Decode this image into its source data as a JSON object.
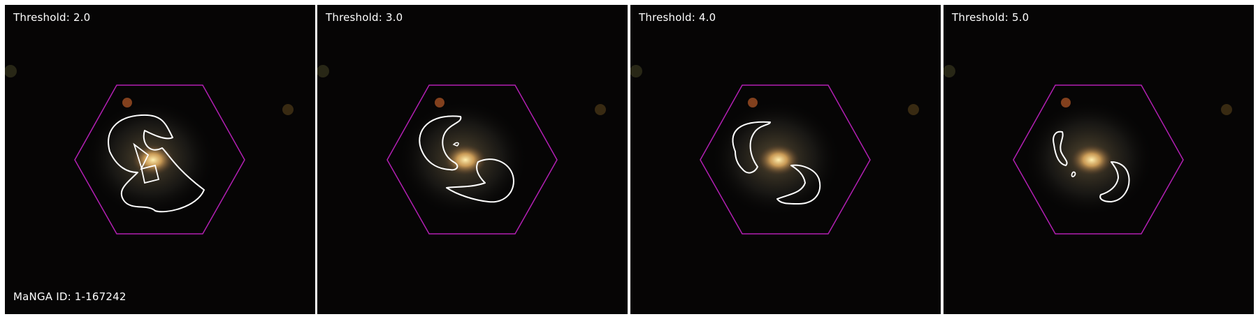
{
  "panels": [
    {
      "label": "Threshold: 2.0"
    },
    {
      "label": "Threshold: 3.0"
    },
    {
      "label": "Threshold: 4.0"
    },
    {
      "label": "Threshold: 5.0"
    }
  ],
  "footer_label": "MaNGA ID: 1-167242",
  "colors": {
    "hexagon": "#b21fb2",
    "contour": "#ffffff",
    "background": "#050404",
    "galaxy_core": "#f8d070"
  }
}
